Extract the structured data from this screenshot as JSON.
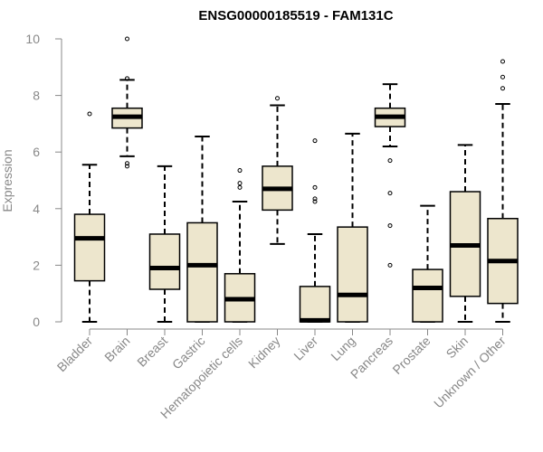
{
  "chart_data": {
    "type": "boxplot",
    "title": "ENSG00000185519 - FAM131C",
    "xlabel": "",
    "ylabel": "Expression",
    "ylim": [
      0,
      10
    ],
    "yticks": [
      0,
      2,
      4,
      6,
      8,
      10
    ],
    "box_fill": "#ede6cd",
    "stroke_color": "#000000",
    "axis_color": "#888888",
    "categories": [
      "Bladder",
      "Brain",
      "Breast",
      "Gastric",
      "Hematopoietic cells",
      "Kidney",
      "Liver",
      "Lung",
      "Pancreas",
      "Prostate",
      "Skin",
      "Unknown / Other"
    ],
    "boxes": [
      {
        "name": "Bladder",
        "whisker_low": 0.0,
        "q1": 1.45,
        "median": 2.95,
        "q3": 3.8,
        "whisker_high": 5.55,
        "outliers": [
          7.35
        ]
      },
      {
        "name": "Brain",
        "whisker_low": 5.85,
        "q1": 6.85,
        "median": 7.25,
        "q3": 7.55,
        "whisker_high": 8.55,
        "outliers": [
          5.5,
          5.6,
          8.6,
          10.0
        ]
      },
      {
        "name": "Breast",
        "whisker_low": 0.0,
        "q1": 1.15,
        "median": 1.9,
        "q3": 3.1,
        "whisker_high": 5.5,
        "outliers": []
      },
      {
        "name": "Gastric",
        "whisker_low": 0.0,
        "q1": 0.0,
        "median": 2.0,
        "q3": 3.5,
        "whisker_high": 6.55,
        "outliers": []
      },
      {
        "name": "Hematopoietic cells",
        "whisker_low": 0.0,
        "q1": 0.0,
        "median": 0.8,
        "q3": 1.7,
        "whisker_high": 4.25,
        "outliers": [
          4.75,
          4.9,
          5.35
        ]
      },
      {
        "name": "Kidney",
        "whisker_low": 2.75,
        "q1": 3.95,
        "median": 4.7,
        "q3": 5.5,
        "whisker_high": 7.65,
        "outliers": [
          7.9
        ]
      },
      {
        "name": "Liver",
        "whisker_low": 0.0,
        "q1": 0.0,
        "median": 0.05,
        "q3": 1.25,
        "whisker_high": 3.1,
        "outliers": [
          4.25,
          4.35,
          4.75,
          6.4
        ]
      },
      {
        "name": "Lung",
        "whisker_low": 0.0,
        "q1": 0.0,
        "median": 0.95,
        "q3": 3.35,
        "whisker_high": 6.65,
        "outliers": []
      },
      {
        "name": "Pancreas",
        "whisker_low": 6.2,
        "q1": 6.9,
        "median": 7.25,
        "q3": 7.55,
        "whisker_high": 8.4,
        "outliers": [
          2.0,
          3.4,
          4.55,
          5.7
        ]
      },
      {
        "name": "Prostate",
        "whisker_low": 0.0,
        "q1": 0.0,
        "median": 1.2,
        "q3": 1.85,
        "whisker_high": 4.1,
        "outliers": []
      },
      {
        "name": "Skin",
        "whisker_low": 0.0,
        "q1": 0.9,
        "median": 2.7,
        "q3": 4.6,
        "whisker_high": 6.25,
        "outliers": []
      },
      {
        "name": "Unknown / Other",
        "whisker_low": 0.0,
        "q1": 0.65,
        "median": 2.15,
        "q3": 3.65,
        "whisker_high": 7.7,
        "outliers": [
          8.25,
          8.65,
          9.2
        ]
      }
    ]
  }
}
